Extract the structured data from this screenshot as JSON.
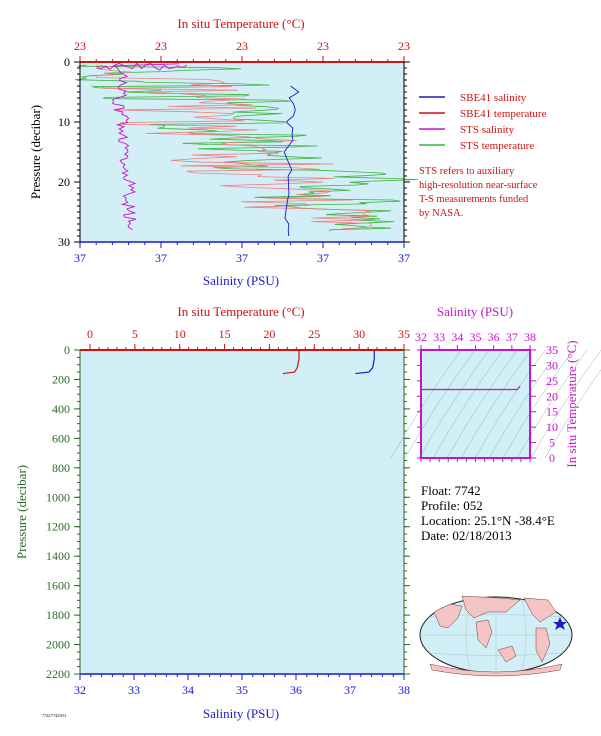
{
  "top_chart": {
    "title_top": "In situ Temperature (°C)",
    "xlabel_bottom": "Salinity (PSU)",
    "ylabel": "Pressure (decibar)",
    "temp_ticks": [
      "23",
      "23",
      "23",
      "23",
      "23"
    ],
    "sal_ticks": [
      "37",
      "37",
      "37",
      "37",
      "37"
    ],
    "pressure_ticks": [
      "0",
      "10",
      "20",
      "30"
    ]
  },
  "legend": {
    "items": [
      {
        "label": "SBE41 salinity",
        "color": "#1a1acc"
      },
      {
        "label": "SBE41 temperature",
        "color": "#d11111"
      },
      {
        "label": "STS salinity",
        "color": "#c814c8"
      },
      {
        "label": "STS temperature",
        "color": "#3cb43c"
      }
    ],
    "note": [
      "STS refers to auxiliary",
      "high-resolution near-surface",
      "T-S measurements funded",
      "by NASA."
    ]
  },
  "bottom_chart": {
    "title_top": "In situ Temperature (°C)",
    "xlabel_bottom": "Salinity (PSU)",
    "ylabel": "Pressure (decibar)",
    "temp_ticks": [
      "0",
      "5",
      "10",
      "15",
      "20",
      "25",
      "30",
      "35"
    ],
    "sal_ticks": [
      "32",
      "33",
      "34",
      "35",
      "36",
      "37",
      "38"
    ],
    "pressure_ticks": [
      "0",
      "200",
      "400",
      "600",
      "800",
      "1000",
      "1200",
      "1400",
      "1600",
      "1800",
      "2000",
      "2200"
    ]
  },
  "ts_chart": {
    "title_top": "Salinity (PSU)",
    "ylabel": "In situ Temperature (°C)",
    "sal_ticks": [
      "32",
      "33",
      "34",
      "35",
      "36",
      "37",
      "38"
    ],
    "temp_ticks": [
      "35",
      "30",
      "25",
      "20",
      "15",
      "10",
      "5",
      "0"
    ]
  },
  "info": {
    "float": "Float: 7742",
    "profile": "Profile: 052",
    "location": "Location: 25.1°N -38.4°E",
    "date": "Date: 02/18/2013"
  },
  "footer_text": "7742/7742/052",
  "chart_data": [
    {
      "type": "line",
      "name": "near-surface profile",
      "ylabel": "Pressure (decibar)",
      "ylim": [
        30,
        0
      ],
      "series": [
        {
          "name": "SBE41 salinity",
          "color": "#1a1acc",
          "pressure": [
            4,
            6,
            8,
            10,
            12,
            15,
            18,
            22,
            26,
            28
          ],
          "x_frac": [
            0.66,
            0.65,
            0.66,
            0.65,
            0.66,
            0.64,
            0.64,
            0.64,
            0.64,
            0.64
          ]
        },
        {
          "name": "STS salinity",
          "color": "#c814c8",
          "pressure": [
            0.5,
            2,
            4,
            6,
            8,
            10,
            14,
            18,
            22,
            26,
            28
          ],
          "x_frac": [
            0.3,
            0.12,
            0.14,
            0.13,
            0.12,
            0.13,
            0.13,
            0.14,
            0.15,
            0.15,
            0.16
          ]
        }
      ]
    },
    {
      "type": "line",
      "name": "full profile",
      "xlabel": "Salinity (PSU)",
      "ylabel": "Pressure (decibar)",
      "xlim": [
        32,
        38
      ],
      "ylim": [
        2200,
        0
      ],
      "series": [
        {
          "name": "SBE41 salinity",
          "color": "#1a1acc",
          "salinity": [
            37.45,
            37.45,
            37.42,
            37.35,
            37.1
          ],
          "pressure": [
            0,
            60,
            120,
            150,
            160
          ]
        },
        {
          "name": "SBE41 temperature",
          "color": "#d11111",
          "temp_xlim": [
            0,
            35
          ],
          "temperature": [
            23.3,
            23.3,
            23.1,
            22.8,
            21.5
          ],
          "pressure": [
            0,
            60,
            120,
            150,
            160
          ]
        }
      ]
    },
    {
      "type": "scatter",
      "name": "T-S diagram",
      "xlabel": "Salinity (PSU)",
      "ylabel": "In situ Temperature (°C)",
      "xlim": [
        32,
        38
      ],
      "ylim": [
        0,
        35
      ],
      "series": [
        {
          "name": "profile",
          "color": "#c814c8",
          "salinity": [
            32,
            37.3,
            37.45
          ],
          "temperature": [
            22.2,
            22.2,
            23.3
          ]
        }
      ]
    }
  ]
}
